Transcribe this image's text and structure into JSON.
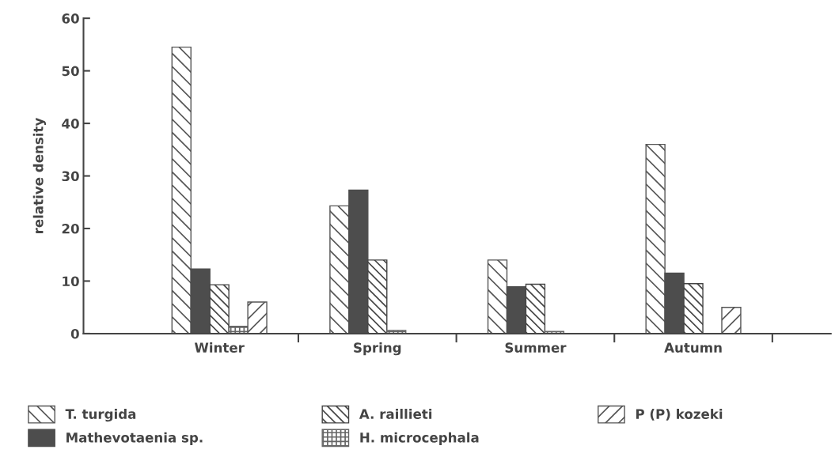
{
  "chart_data": {
    "type": "bar",
    "ylabel": "relative density",
    "categories": [
      "Winter",
      "Spring",
      "Summer",
      "Autumn"
    ],
    "series": [
      {
        "name": "T. turgida",
        "color": "#555555",
        "values": [
          54.5,
          24.3,
          14,
          36
        ]
      },
      {
        "name": "Mathevotaenia sp.",
        "color": "#4d4d4d",
        "values": [
          12.3,
          27.3,
          8.9,
          11.5
        ]
      },
      {
        "name": "A. raillieti",
        "color": "#444444",
        "values": [
          9.3,
          14,
          9.4,
          9.5
        ]
      },
      {
        "name": "H. microcephala",
        "color": "#666666",
        "values": [
          1.4,
          0.6,
          0.4,
          null
        ]
      },
      {
        "name": "P (P) kozeki",
        "color": "#555555",
        "values": [
          6,
          null,
          null,
          5
        ]
      }
    ],
    "ylim": [
      0,
      60
    ],
    "yticks": [
      0,
      10,
      20,
      30,
      40,
      50,
      60
    ],
    "grid": false,
    "legend": "bottom"
  }
}
